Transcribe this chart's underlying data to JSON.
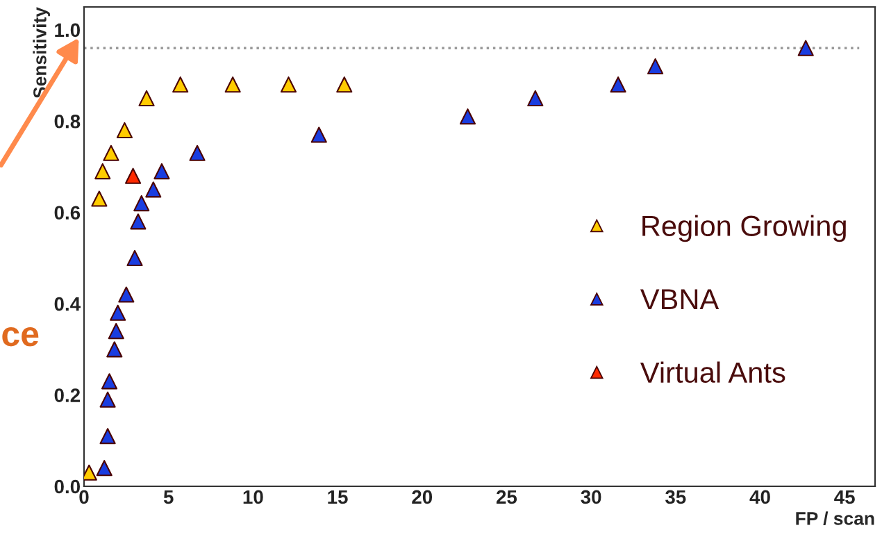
{
  "chart_data": {
    "type": "scatter",
    "xlabel": "FP / scan",
    "ylabel": "Sensitivity",
    "xlim": [
      0,
      46.8
    ],
    "ylim": [
      0,
      1.05
    ],
    "xticks": [
      0,
      5,
      10,
      15,
      20,
      25,
      30,
      35,
      40,
      45
    ],
    "yticks": [
      {
        "value": 0,
        "label": "0.0"
      },
      {
        "value": 0.2,
        "label": "0.2"
      },
      {
        "value": 0.4,
        "label": "0.4"
      },
      {
        "value": 0.6,
        "label": "0.6"
      },
      {
        "value": 0.8,
        "label": "0.8"
      },
      {
        "value": 1.0,
        "label": "1.0"
      }
    ],
    "marker": "triangle",
    "legend": "right",
    "grid": false,
    "ref_lines": [
      {
        "axis": "y",
        "value": 0.96,
        "color": "#999999",
        "line_style": "dotted"
      }
    ],
    "annotations": [
      "ce"
    ],
    "series": [
      {
        "name": "Region Growing",
        "color": "#ffcc00",
        "x": [
          0.3,
          0.9,
          1.1,
          1.6,
          2.4,
          3.7,
          5.7,
          8.8,
          12.1,
          15.4
        ],
        "values": [
          0.03,
          0.63,
          0.69,
          0.73,
          0.78,
          0.85,
          0.88,
          0.88,
          0.88,
          0.88
        ]
      },
      {
        "name": "VBNA",
        "color": "#1a3de0",
        "x": [
          1.2,
          1.4,
          1.4,
          1.5,
          1.8,
          1.9,
          2.0,
          2.5,
          3.0,
          3.2,
          3.4,
          4.1,
          4.6,
          6.7,
          13.9,
          22.7,
          26.7,
          31.6,
          33.8,
          42.7
        ],
        "values": [
          0.04,
          0.11,
          0.19,
          0.23,
          0.3,
          0.34,
          0.38,
          0.42,
          0.5,
          0.58,
          0.62,
          0.65,
          0.69,
          0.73,
          0.77,
          0.81,
          0.85,
          0.88,
          0.92,
          0.96
        ]
      },
      {
        "name": "Virtual Ants",
        "color": "#ff2a00",
        "x": [
          2.9
        ],
        "values": [
          0.68
        ]
      }
    ]
  }
}
